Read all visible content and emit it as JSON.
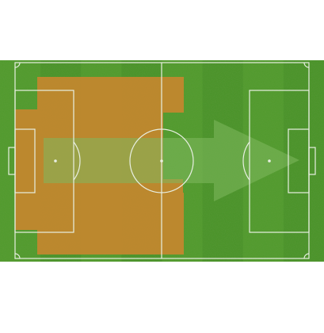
{
  "colors": {
    "background": "#ffffff",
    "grass_light": "#4f9a2a",
    "grass_dark": "#3f8a22",
    "line": "#e8efe2",
    "zone_fill": "#c8862f",
    "arrow_fill": "#7fb85e"
  },
  "pitch": {
    "stripe_count": 8
  },
  "zone": {
    "shape": "defensive-half-block"
  },
  "arrow": {
    "direction": "right",
    "icon": "right-arrow-icon"
  }
}
